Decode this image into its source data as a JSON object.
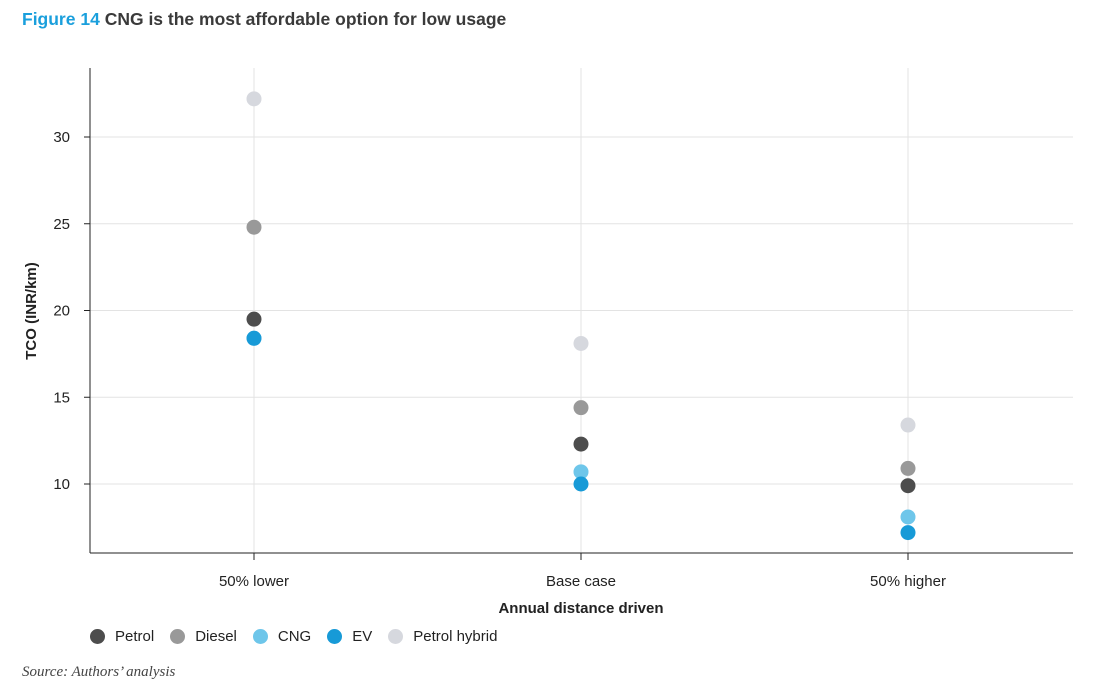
{
  "figure": {
    "number": "Figure 14",
    "title": "CNG is the most affordable option for low usage",
    "source": "Source: Authors’ analysis"
  },
  "chart_data": {
    "type": "scatter",
    "xlabel": "Annual distance driven",
    "ylabel": "TCO (INR/km)",
    "categories": [
      "50% lower",
      "Base case",
      "50% higher"
    ],
    "yticks": [
      10,
      15,
      20,
      25,
      30
    ],
    "ylim": [
      6,
      34
    ],
    "grid": true,
    "legend_position": "bottom-left",
    "series": [
      {
        "name": "Petrol",
        "color": "#4d4d4d",
        "values": [
          19.5,
          12.3,
          9.9
        ]
      },
      {
        "name": "Diesel",
        "color": "#999999",
        "values": [
          24.8,
          14.4,
          10.9
        ]
      },
      {
        "name": "CNG",
        "color": "#6ec6ea",
        "values": [
          18.4,
          10.7,
          8.1
        ]
      },
      {
        "name": "EV",
        "color": "#179ad7",
        "values": [
          18.4,
          10.0,
          7.2
        ]
      },
      {
        "name": "Petrol hybrid",
        "color": "#d6d8de",
        "values": [
          32.2,
          18.1,
          13.4
        ]
      }
    ]
  }
}
